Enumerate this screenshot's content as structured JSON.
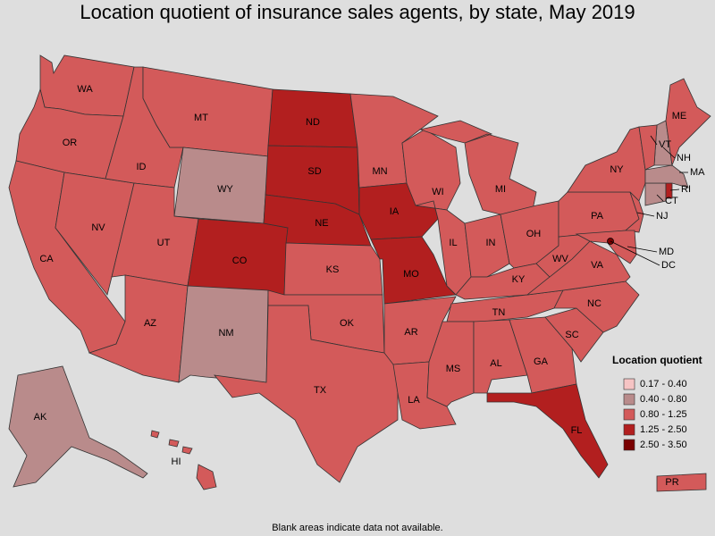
{
  "title": "Location quotient of insurance sales agents, by state, May 2019",
  "legend": {
    "title": "Location quotient",
    "items": [
      {
        "label": "0.17 - 0.40",
        "color": "#f6c4c4"
      },
      {
        "label": "0.40 - 0.80",
        "color": "#b98b8b"
      },
      {
        "label": "0.80 - 1.25",
        "color": "#d35a5a"
      },
      {
        "label": "1.25 - 2.50",
        "color": "#b21f1f"
      },
      {
        "label": "2.50 - 3.50",
        "color": "#7a0000"
      }
    ]
  },
  "states": [
    {
      "label": "WA",
      "color": "#d35a5a"
    },
    {
      "label": "OR",
      "color": "#d35a5a"
    },
    {
      "label": "CA",
      "color": "#d35a5a"
    },
    {
      "label": "NV",
      "color": "#d35a5a"
    },
    {
      "label": "ID",
      "color": "#d35a5a"
    },
    {
      "label": "MT",
      "color": "#d35a5a"
    },
    {
      "label": "WY",
      "color": "#b98b8b"
    },
    {
      "label": "UT",
      "color": "#d35a5a"
    },
    {
      "label": "AZ",
      "color": "#d35a5a"
    },
    {
      "label": "CO",
      "color": "#b21f1f"
    },
    {
      "label": "NM",
      "color": "#b98b8b"
    },
    {
      "label": "ND",
      "color": "#b21f1f"
    },
    {
      "label": "SD",
      "color": "#b21f1f"
    },
    {
      "label": "NE",
      "color": "#b21f1f"
    },
    {
      "label": "KS",
      "color": "#d35a5a"
    },
    {
      "label": "OK",
      "color": "#d35a5a"
    },
    {
      "label": "TX",
      "color": "#d35a5a"
    },
    {
      "label": "MN",
      "color": "#d35a5a"
    },
    {
      "label": "IA",
      "color": "#b21f1f"
    },
    {
      "label": "MO",
      "color": "#b21f1f"
    },
    {
      "label": "AR",
      "color": "#d35a5a"
    },
    {
      "label": "LA",
      "color": "#d35a5a"
    },
    {
      "label": "WI",
      "color": "#d35a5a"
    },
    {
      "label": "IL",
      "color": "#d35a5a"
    },
    {
      "label": "MI",
      "color": "#d35a5a"
    },
    {
      "label": "IN",
      "color": "#d35a5a"
    },
    {
      "label": "OH",
      "color": "#d35a5a"
    },
    {
      "label": "KY",
      "color": "#d35a5a"
    },
    {
      "label": "TN",
      "color": "#d35a5a"
    },
    {
      "label": "MS",
      "color": "#d35a5a"
    },
    {
      "label": "AL",
      "color": "#d35a5a"
    },
    {
      "label": "GA",
      "color": "#d35a5a"
    },
    {
      "label": "FL",
      "color": "#b21f1f"
    },
    {
      "label": "SC",
      "color": "#d35a5a"
    },
    {
      "label": "NC",
      "color": "#d35a5a"
    },
    {
      "label": "VA",
      "color": "#d35a5a"
    },
    {
      "label": "WV",
      "color": "#d35a5a"
    },
    {
      "label": "PA",
      "color": "#d35a5a"
    },
    {
      "label": "NY",
      "color": "#d35a5a"
    },
    {
      "label": "NJ",
      "color": "#d35a5a"
    },
    {
      "label": "MD",
      "color": "#d35a5a"
    },
    {
      "label": "DC",
      "color": "#7a0000"
    },
    {
      "label": "CT",
      "color": "#b98b8b"
    },
    {
      "label": "RI",
      "color": "#b21f1f"
    },
    {
      "label": "MA",
      "color": "#b98b8b"
    },
    {
      "label": "NH",
      "color": "#b98b8b"
    },
    {
      "label": "VT",
      "color": "#d35a5a"
    },
    {
      "label": "ME",
      "color": "#d35a5a"
    },
    {
      "label": "AK",
      "color": "#b98b8b"
    },
    {
      "label": "HI",
      "color": "#d35a5a"
    },
    {
      "label": "PR",
      "color": "#d35a5a"
    }
  ],
  "footnote": "Blank areas indicate data not available."
}
